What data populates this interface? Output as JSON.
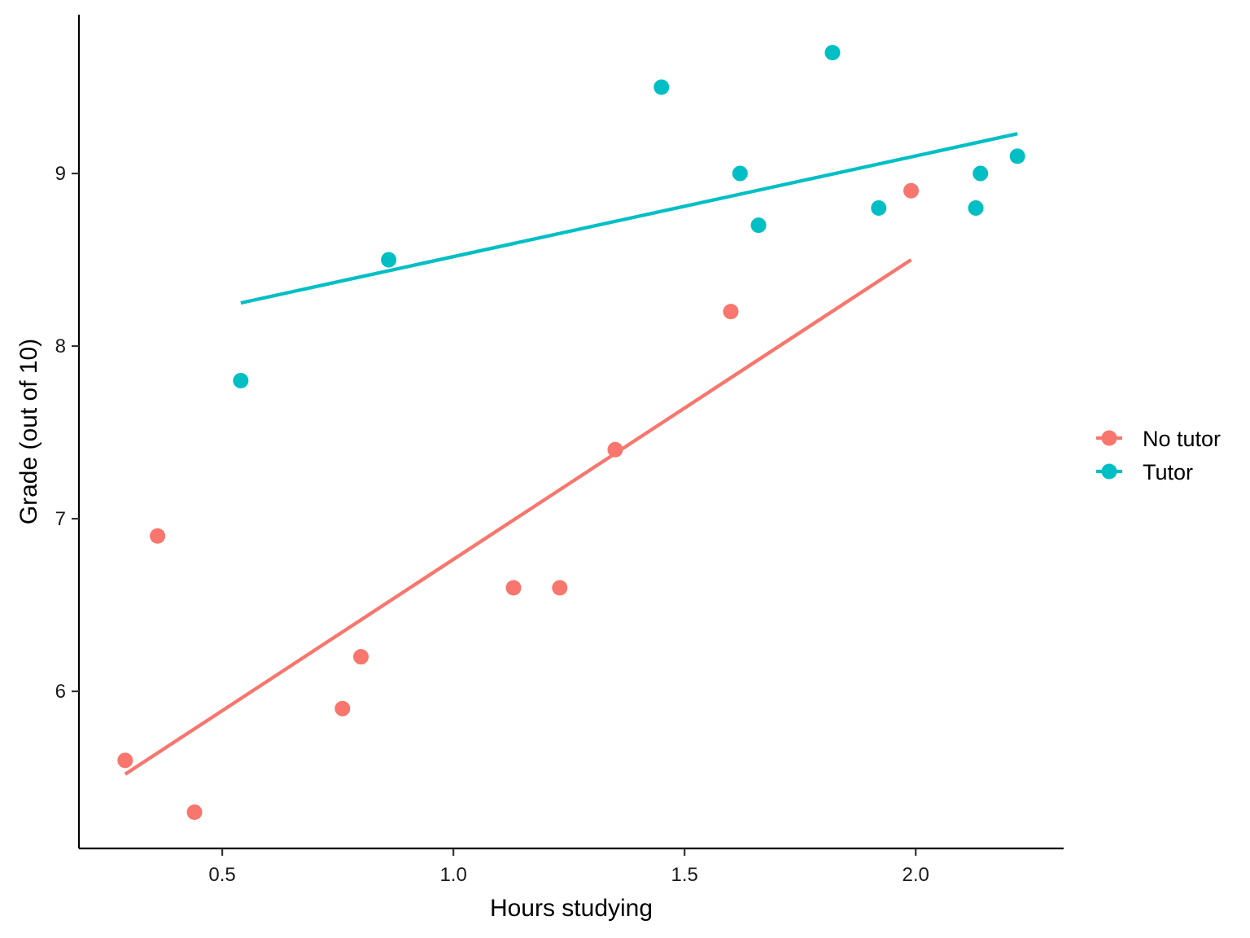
{
  "chart_data": {
    "type": "scatter",
    "xlabel": "Hours studying",
    "ylabel": "Grade (out of 10)",
    "xlim": [
      0.19,
      2.32
    ],
    "ylim": [
      5.09,
      9.92
    ],
    "x_ticks": [
      0.5,
      1.0,
      1.5,
      2.0
    ],
    "x_tick_labels": [
      "0.5",
      "1.0",
      "1.5",
      "2.0"
    ],
    "y_ticks": [
      6,
      7,
      8,
      9
    ],
    "y_tick_labels": [
      "6",
      "7",
      "8",
      "9"
    ],
    "grid": false,
    "legend_position": "right",
    "series": [
      {
        "name": "No tutor",
        "color": "#F8766D",
        "points": [
          {
            "x": 0.29,
            "y": 5.6
          },
          {
            "x": 0.36,
            "y": 6.9
          },
          {
            "x": 0.44,
            "y": 5.3
          },
          {
            "x": 0.76,
            "y": 5.9
          },
          {
            "x": 0.8,
            "y": 6.2
          },
          {
            "x": 1.13,
            "y": 6.6
          },
          {
            "x": 1.23,
            "y": 6.6
          },
          {
            "x": 1.35,
            "y": 7.4
          },
          {
            "x": 1.6,
            "y": 8.2
          },
          {
            "x": 1.99,
            "y": 8.9
          }
        ],
        "fit_line": {
          "x": [
            0.29,
            1.99
          ],
          "y": [
            5.52,
            8.5
          ]
        }
      },
      {
        "name": "Tutor",
        "color": "#00BFC4",
        "points": [
          {
            "x": 0.54,
            "y": 7.8
          },
          {
            "x": 0.86,
            "y": 8.5
          },
          {
            "x": 1.45,
            "y": 9.5
          },
          {
            "x": 1.62,
            "y": 9.0
          },
          {
            "x": 1.66,
            "y": 8.7
          },
          {
            "x": 1.82,
            "y": 9.7
          },
          {
            "x": 1.92,
            "y": 8.8
          },
          {
            "x": 2.13,
            "y": 8.8
          },
          {
            "x": 2.14,
            "y": 9.0
          },
          {
            "x": 2.22,
            "y": 9.1
          }
        ],
        "fit_line": {
          "x": [
            0.54,
            2.22
          ],
          "y": [
            8.25,
            9.23
          ]
        }
      }
    ]
  }
}
